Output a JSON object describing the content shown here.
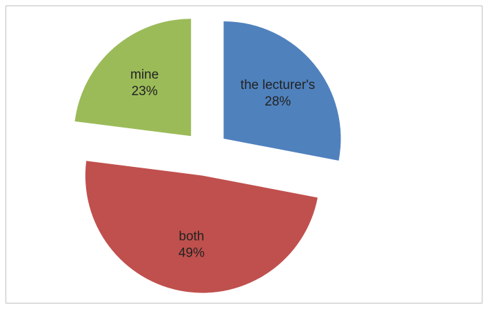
{
  "chart_data": {
    "type": "pie",
    "categories": [
      "the lecturer's",
      "both",
      "mine"
    ],
    "values": [
      28,
      49,
      23
    ],
    "value_labels": [
      "28%",
      "49%",
      "23%"
    ],
    "colors": [
      "#4f81bd",
      "#c0504d",
      "#9bbb59"
    ]
  }
}
